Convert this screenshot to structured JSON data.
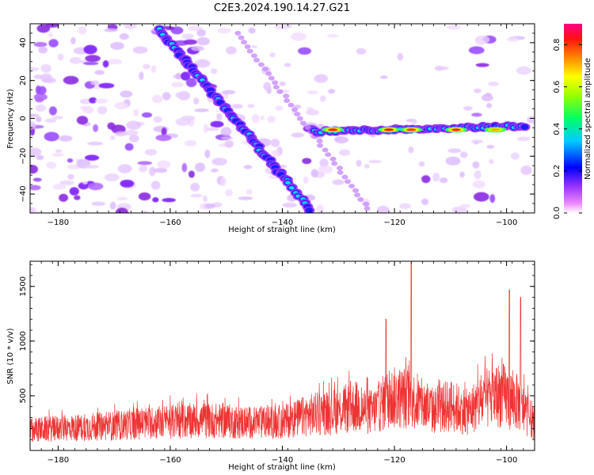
{
  "title": "C2E3.2024.190.14.27.G21",
  "chart_data": [
    {
      "type": "heatmap",
      "xlabel": "Height of straight line (km)",
      "ylabel": "Frequency (Hz)",
      "xlim": [
        -185,
        -95
      ],
      "ylim": [
        -50,
        50
      ],
      "xticks": [
        -180,
        -160,
        -140,
        -120,
        -100
      ],
      "yticks": [
        -40,
        -20,
        0,
        20,
        40
      ],
      "colorbar": {
        "label": "Normalized spectral amplitude",
        "range": [
          0.0,
          0.9
        ],
        "ticks": [
          "0.0",
          "0.2",
          "0.4",
          "0.6",
          "0.8"
        ],
        "colormap": [
          "#ffffff",
          "#ff66ff",
          "#6600ff",
          "#0000ff",
          "#00ffff",
          "#00ff00",
          "#ffff00",
          "#ff8000",
          "#ff0000",
          "#ff0080"
        ]
      },
      "features": [
        {
          "kind": "diagonal",
          "from": [
            -162,
            47
          ],
          "to": [
            -135,
            -48
          ],
          "amplitude": 0.3
        },
        {
          "kind": "horizontal",
          "from": [
            -134,
            -7
          ],
          "to": [
            -97,
            -4
          ],
          "amplitude": 0.6
        }
      ]
    },
    {
      "type": "line",
      "xlabel": "Height of straight line (km)",
      "ylabel": "SNR (10 * v/v)",
      "xlim": [
        -185,
        -95
      ],
      "ylim": [
        0,
        1730
      ],
      "xticks": [
        -180,
        -160,
        -140,
        -120,
        -100
      ],
      "yticks": [
        500,
        1000,
        1500
      ],
      "color": "#ee3333",
      "envelope": [
        [
          -185,
          300
        ],
        [
          -180,
          320
        ],
        [
          -175,
          340
        ],
        [
          -170,
          360
        ],
        [
          -165,
          400
        ],
        [
          -160,
          420
        ],
        [
          -155,
          440
        ],
        [
          -150,
          430
        ],
        [
          -145,
          400
        ],
        [
          -140,
          420
        ],
        [
          -135,
          520
        ],
        [
          -130,
          580
        ],
        [
          -127,
          640
        ],
        [
          -124,
          560
        ],
        [
          -121,
          760
        ],
        [
          -118,
          780
        ],
        [
          -116,
          700
        ],
        [
          -113,
          580
        ],
        [
          -110,
          660
        ],
        [
          -107,
          560
        ],
        [
          -104,
          740
        ],
        [
          -101,
          820
        ],
        [
          -98,
          700
        ],
        [
          -95,
          380
        ]
      ],
      "peaks": [
        {
          "x": -117,
          "y": 1720
        },
        {
          "x": -99.5,
          "y": 1470
        },
        {
          "x": -97.5,
          "y": 1400
        },
        {
          "x": -121.5,
          "y": 1200
        }
      ]
    }
  ]
}
